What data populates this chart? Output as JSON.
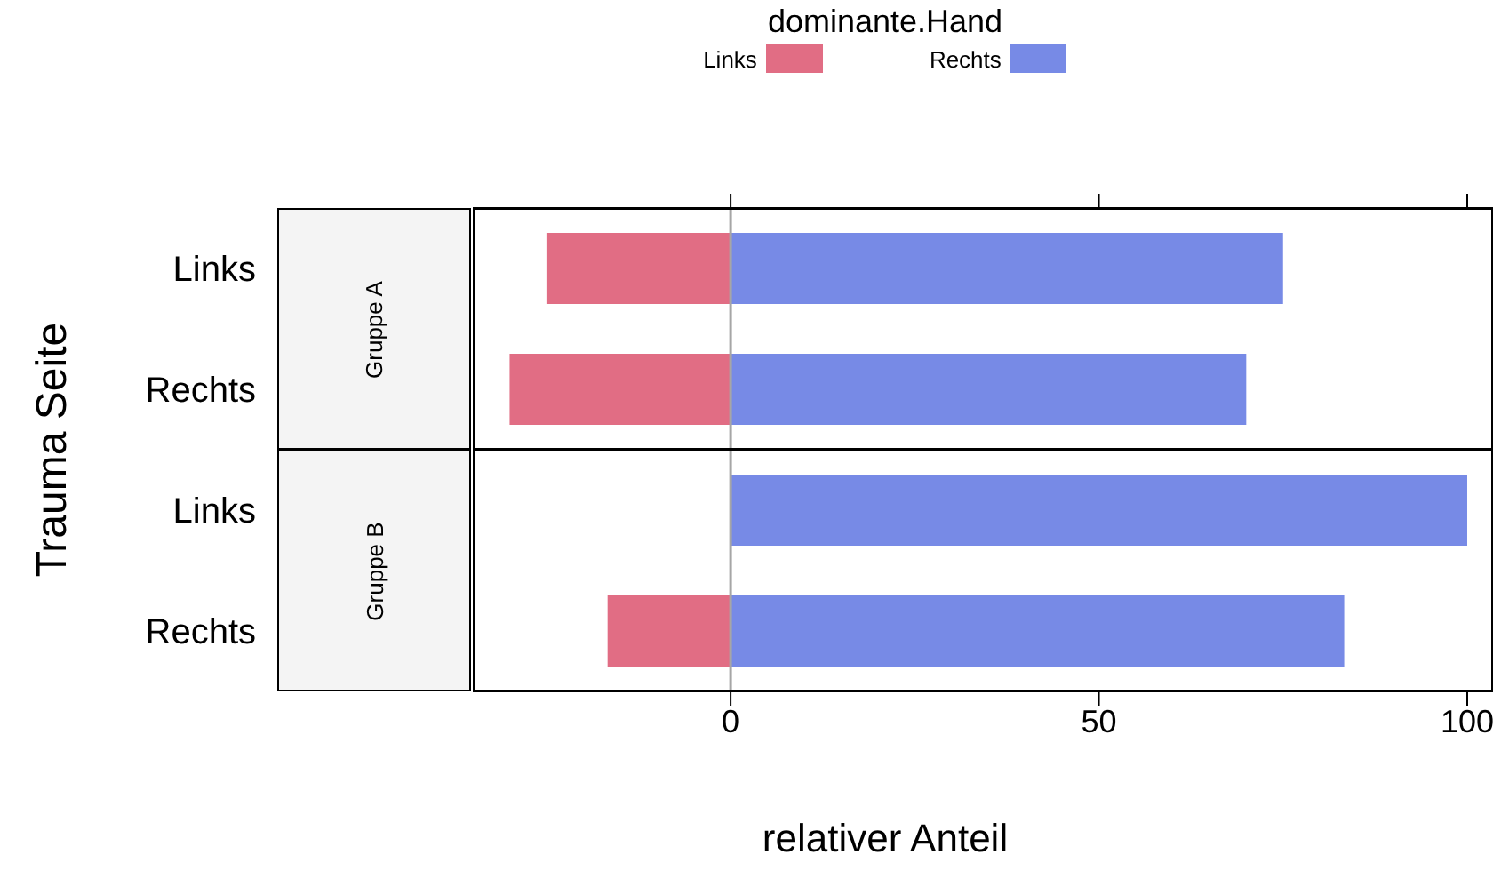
{
  "chart_data": [
    {
      "type": "bar",
      "orientation": "horizontal",
      "stacked": true,
      "title": "Gruppe A",
      "ylabel": "Trauma Seite",
      "legend_title": "dominante.Hand",
      "legend": "top",
      "categories": [
        "Links",
        "Rechts"
      ],
      "series": [
        {
          "name": "Links",
          "color": "#e16d84",
          "values": [
            -25,
            -30
          ]
        },
        {
          "name": "Rechts",
          "color": "#778ae6",
          "values": [
            75,
            70
          ]
        }
      ],
      "xlim": [
        -35,
        103.5
      ],
      "xticks": [
        0,
        50,
        100
      ],
      "tick_labels": "y",
      "ref_lines": [
        {
          "axis": "x",
          "value": 0,
          "color": "#a6a6a6"
        }
      ]
    },
    {
      "type": "bar",
      "orientation": "horizontal",
      "stacked": true,
      "title": "Gruppe B",
      "xlabel": "relativer Anteil",
      "categories": [
        "Links",
        "Rechts"
      ],
      "series": [
        {
          "color": "#e16d84",
          "values": [
            0,
            -16.7
          ]
        },
        {
          "color": "#778ae6",
          "values": [
            100,
            83.3
          ]
        }
      ],
      "xlim": [
        -35,
        103.5
      ],
      "xticks": [
        0,
        50,
        100
      ],
      "ref_lines": [
        {
          "axis": "x",
          "value": 0,
          "color": "#a6a6a6"
        }
      ]
    }
  ]
}
